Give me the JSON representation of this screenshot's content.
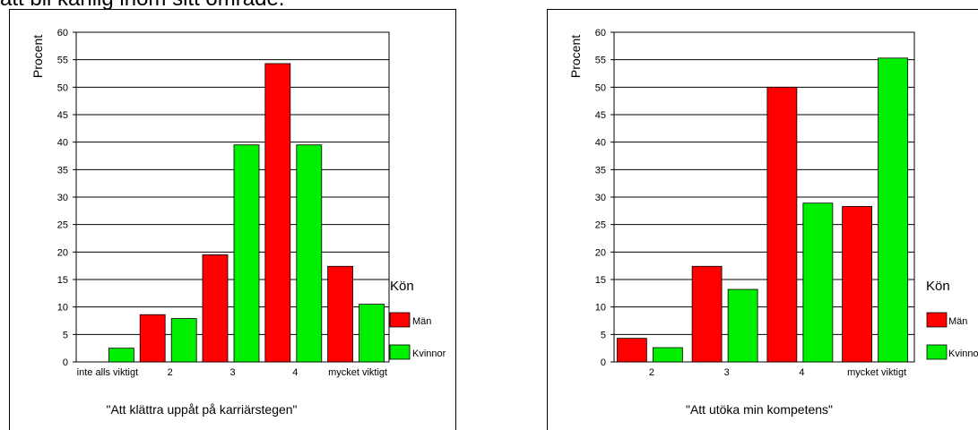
{
  "page": {
    "top_text": "att bli känlig inom sitt område."
  },
  "colors": {
    "men": "#ff0000",
    "women": "#00ee00"
  },
  "chart_data": [
    {
      "type": "bar",
      "title": "\"Att klättra uppåt på karriärstegen\"",
      "xlabel": "\"Att klättra uppåt på karriärstegen\"",
      "ylabel": "Procent",
      "ylim": [
        0,
        60
      ],
      "yticks": [
        0,
        5,
        10,
        15,
        20,
        25,
        30,
        35,
        40,
        45,
        50,
        55,
        60
      ],
      "grid": true,
      "categories": [
        "inte alls viktigt",
        "2",
        "3",
        "4",
        "mycket viktigt"
      ],
      "series": [
        {
          "name": "Män",
          "values": [
            0,
            8.6,
            19.5,
            54.3,
            17.4
          ]
        },
        {
          "name": "Kvinnor",
          "values": [
            2.5,
            7.9,
            39.5,
            39.5,
            10.5
          ]
        }
      ],
      "legend": {
        "title": "Kön",
        "position": "right",
        "labels": [
          "Män",
          "Kvinnor"
        ]
      }
    },
    {
      "type": "bar",
      "title": "\"Att utöka min kompetens\"",
      "xlabel": "\"Att utöka min kompetens\"",
      "ylabel": "Procent",
      "ylim": [
        0,
        60
      ],
      "yticks": [
        0,
        5,
        10,
        15,
        20,
        25,
        30,
        35,
        40,
        45,
        50,
        55,
        60
      ],
      "grid": true,
      "categories": [
        "2",
        "3",
        "4",
        "mycket viktigt"
      ],
      "series": [
        {
          "name": "Män",
          "values": [
            4.3,
            17.4,
            50,
            28.3
          ]
        },
        {
          "name": "Kvinnor",
          "values": [
            2.6,
            13.2,
            28.9,
            55.3
          ]
        }
      ],
      "legend": {
        "title": "Kön",
        "position": "right",
        "labels": [
          "Män",
          "Kvinnor"
        ]
      }
    }
  ]
}
